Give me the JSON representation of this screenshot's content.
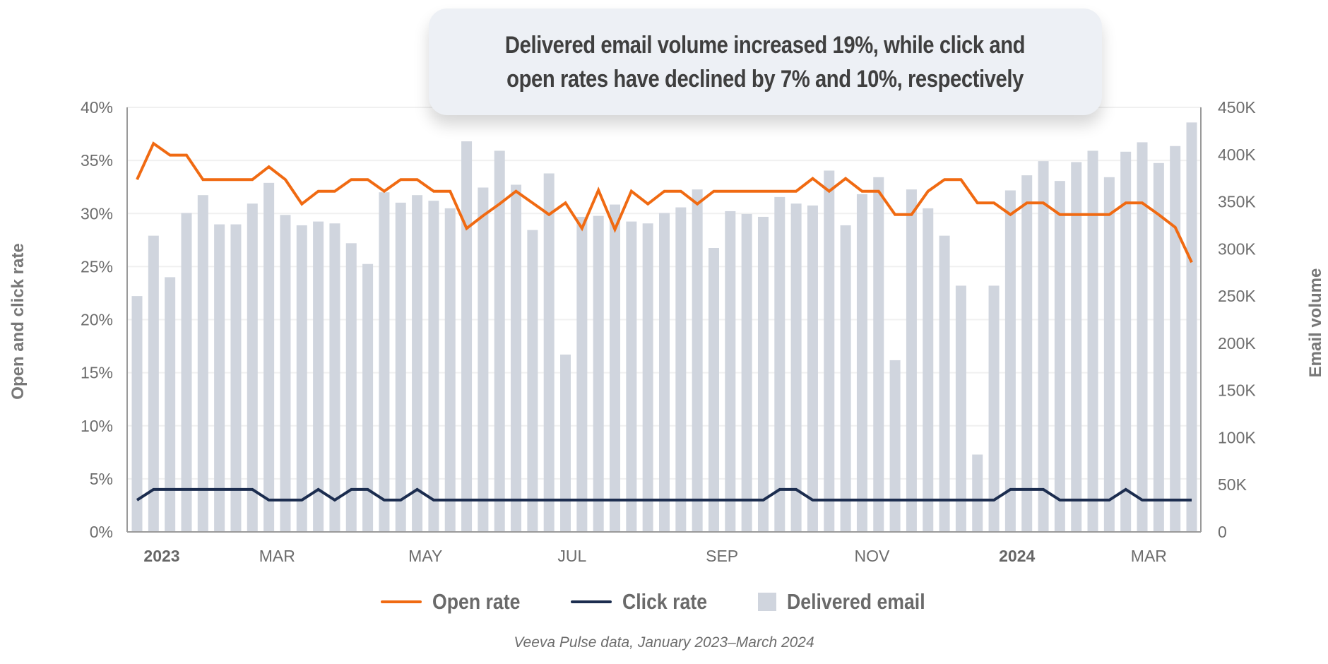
{
  "colors": {
    "open_rate": "#f06a12",
    "click_rate": "#1c2d4f",
    "delivered_email": "#d0d5de",
    "gridline": "#f0f0f0",
    "axis": "#9a9a9a"
  },
  "title": {
    "line1": "Delivered email volume increased 19%, while click and",
    "line2": "open rates have declined by 7% and 10%, respectively"
  },
  "legend": {
    "open_rate": "Open rate",
    "click_rate": "Click rate",
    "delivered_email": "Delivered email"
  },
  "caption": "Veeva Pulse data, January 2023–March 2024",
  "chart_data": {
    "type": "bar+line",
    "title": "Delivered email volume increased 19%, while click and open rates have declined by 7% and 10%, respectively",
    "x_unit": "week",
    "x_count": 65,
    "x_tick_labels": [
      {
        "label": "2023",
        "week": 2.5,
        "bold": true
      },
      {
        "label": "MAR",
        "week": 9.5,
        "bold": false
      },
      {
        "label": "MAY",
        "week": 18.5,
        "bold": false
      },
      {
        "label": "JUL",
        "week": 27.4,
        "bold": false
      },
      {
        "label": "SEP",
        "week": 36.5,
        "bold": false
      },
      {
        "label": "NOV",
        "week": 45.6,
        "bold": false
      },
      {
        "label": "2024",
        "week": 54.4,
        "bold": true
      },
      {
        "label": "MAR",
        "week": 62.4,
        "bold": false
      }
    ],
    "y_left": {
      "label": "Open and click rate",
      "range": [
        0,
        40
      ],
      "ticks": [
        0,
        5,
        10,
        15,
        20,
        25,
        30,
        35,
        40
      ],
      "tick_labels": [
        "0%",
        "5%",
        "10%",
        "15%",
        "20%",
        "25%",
        "30%",
        "35%",
        "40%"
      ]
    },
    "y_right": {
      "label": "Email volume",
      "range": [
        0,
        450000
      ],
      "ticks": [
        0,
        50000,
        100000,
        150000,
        200000,
        250000,
        300000,
        350000,
        400000,
        450000
      ],
      "tick_labels": [
        "0",
        "50K",
        "100K",
        "150K",
        "200K",
        "250K",
        "300K",
        "350K",
        "400K",
        "450K"
      ]
    },
    "grid": true,
    "legend_position": "bottom-center",
    "series": [
      {
        "name": "Delivered email",
        "type": "bar",
        "axis": "right",
        "values": [
          250000,
          314000,
          270000,
          338000,
          357000,
          326000,
          326000,
          348000,
          370000,
          336000,
          325000,
          329000,
          327000,
          306000,
          284000,
          360000,
          349000,
          357000,
          351000,
          343000,
          414000,
          365000,
          404000,
          368000,
          320000,
          380000,
          188000,
          334000,
          335000,
          347000,
          329000,
          327000,
          338000,
          344000,
          363000,
          301000,
          340000,
          337000,
          334000,
          355000,
          348000,
          346000,
          383000,
          325000,
          358000,
          376000,
          182000,
          363000,
          343000,
          314000,
          261000,
          82000,
          261000,
          362000,
          378000,
          393000,
          372000,
          392000,
          404000,
          376000,
          403000,
          413000,
          391000,
          409000,
          434000
        ]
      },
      {
        "name": "Open rate",
        "type": "line",
        "axis": "left",
        "values": [
          33.2,
          36.6,
          35.5,
          35.5,
          33.2,
          33.2,
          33.2,
          33.2,
          34.4,
          33.2,
          30.9,
          32.1,
          32.1,
          33.2,
          33.2,
          32.1,
          33.2,
          33.2,
          32.1,
          32.1,
          28.6,
          29.8,
          30.9,
          32.1,
          31.0,
          29.9,
          31.0,
          28.6,
          32.2,
          28.5,
          32.1,
          30.9,
          32.1,
          32.1,
          30.9,
          32.1,
          32.1,
          32.1,
          32.1,
          32.1,
          32.1,
          33.3,
          32.1,
          33.3,
          32.1,
          32.1,
          29.9,
          29.9,
          32.1,
          33.2,
          33.2,
          31.0,
          31.0,
          29.9,
          31.0,
          31.0,
          29.9,
          29.9,
          29.9,
          29.9,
          31.0,
          31.0,
          29.9,
          28.7,
          25.4
        ]
      },
      {
        "name": "Click rate",
        "type": "line",
        "axis": "left",
        "values": [
          3,
          4,
          4,
          4,
          4,
          4,
          4,
          4,
          3,
          3,
          3,
          4,
          3,
          4,
          4,
          3,
          3,
          4,
          3,
          3,
          3,
          3,
          3,
          3,
          3,
          3,
          3,
          3,
          3,
          3,
          3,
          3,
          3,
          3,
          3,
          3,
          3,
          3,
          3,
          4,
          4,
          3,
          3,
          3,
          3,
          3,
          3,
          3,
          3,
          3,
          3,
          3,
          3,
          4,
          4,
          4,
          3,
          3,
          3,
          3,
          4,
          3,
          3,
          3,
          3
        ]
      }
    ]
  }
}
